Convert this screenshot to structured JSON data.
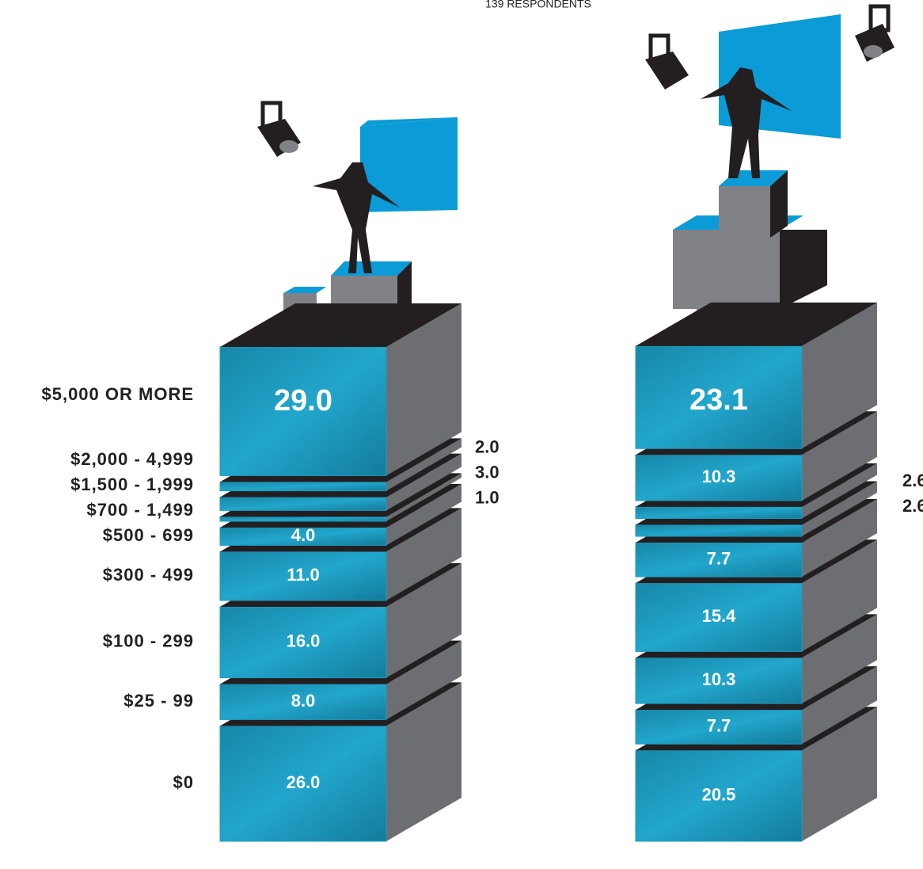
{
  "chart_data": {
    "type": "stacked-blocks",
    "subtitle": "139 RESPONDENTS",
    "categories": [
      "$0",
      "$25 - 99",
      "$100 - 299",
      "$300 - 499",
      "$500 - 699",
      "$700 - 1,499",
      "$1,500 - 1,999",
      "$2,000 - 4,999",
      "$5,000 OR MORE"
    ],
    "series": [
      {
        "color": "#1a9cc4",
        "values": [
          26,
          8,
          16,
          11,
          4,
          1,
          3,
          2,
          29
        ],
        "value_labels": [
          "26.0",
          "8.0",
          "16.0",
          "11.0",
          "4.0",
          "1.0",
          "3.0",
          "2.0",
          "29.0"
        ]
      },
      {
        "color": "#1a9cc4",
        "values": [
          20.5,
          7.7,
          10.3,
          15.4,
          7.7,
          2.6,
          2.6,
          10.3,
          23.1
        ]
      }
    ]
  }
}
